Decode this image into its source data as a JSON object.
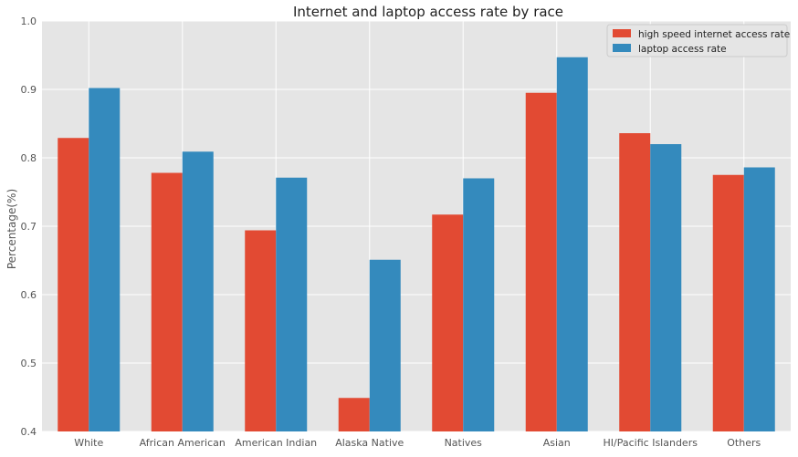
{
  "chart_data": {
    "type": "bar",
    "title": "Internet and laptop access rate by race",
    "xlabel": "",
    "ylabel": "Percentage(%)",
    "ylim": [
      0.4,
      1.0
    ],
    "yticks": [
      "0.4",
      "0.5",
      "0.6",
      "0.7",
      "0.8",
      "0.9",
      "1.0"
    ],
    "grid": true,
    "legend_position": "top-right",
    "categories": [
      "White",
      "African American",
      "American Indian",
      "Alaska Native",
      "Natives",
      "Asian",
      "HI/Pacific Islanders",
      "Others"
    ],
    "series": [
      {
        "name": "high speed internet access rate",
        "color": "#e24a33",
        "values": [
          0.829,
          0.778,
          0.694,
          0.449,
          0.717,
          0.895,
          0.836,
          0.775
        ]
      },
      {
        "name": "laptop access rate",
        "color": "#348abd",
        "values": [
          0.902,
          0.809,
          0.771,
          0.651,
          0.77,
          0.947,
          0.82,
          0.786
        ]
      }
    ]
  }
}
